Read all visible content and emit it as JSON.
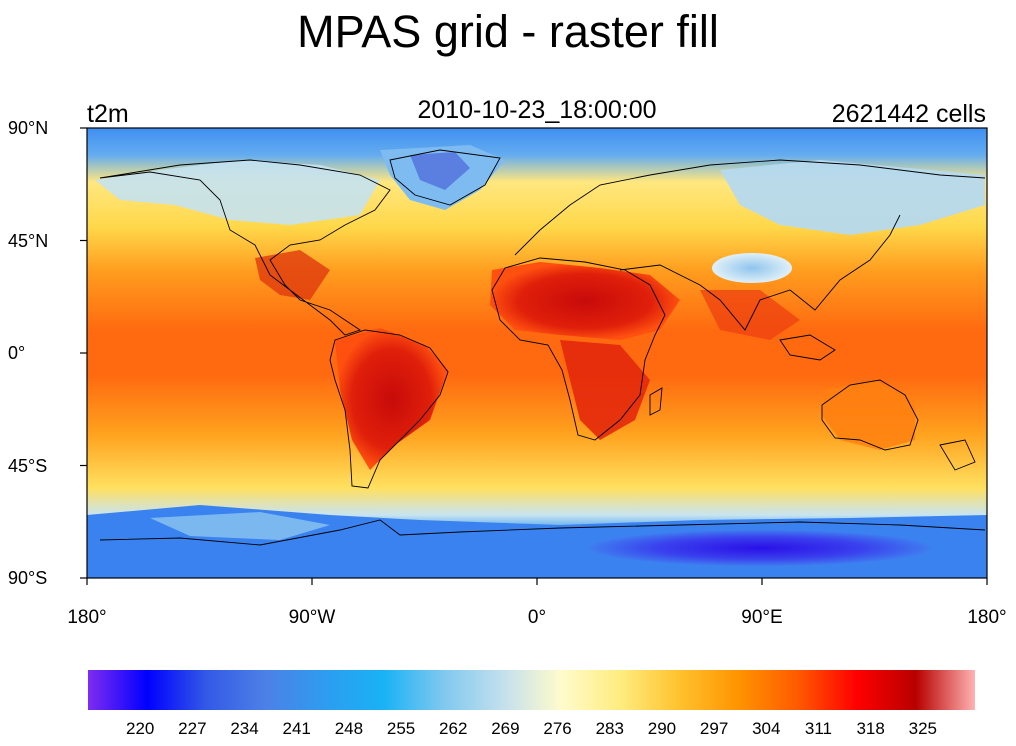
{
  "title": "MPAS grid - raster fill",
  "left_string": "t2m",
  "center_string": "2010-10-23_18:00:00",
  "right_string": "2621442 cells",
  "y_ticks": [
    {
      "label": "90°N",
      "lat": 90
    },
    {
      "label": "45°N",
      "lat": 45
    },
    {
      "label": "0°",
      "lat": 0
    },
    {
      "label": "45°S",
      "lat": -45
    },
    {
      "label": "90°S",
      "lat": -90
    }
  ],
  "x_ticks": [
    {
      "label": "180°",
      "lon": -180
    },
    {
      "label": "90°W",
      "lon": -90
    },
    {
      "label": "0°",
      "lon": 0
    },
    {
      "label": "90°E",
      "lon": 90
    },
    {
      "label": "180°",
      "lon": 180
    }
  ],
  "colorbar": {
    "labels": [
      "220",
      "227",
      "234",
      "241",
      "248",
      "255",
      "262",
      "269",
      "276",
      "283",
      "290",
      "297",
      "304",
      "311",
      "318",
      "325"
    ],
    "colors": [
      "#7f2cf0",
      "#0000ff",
      "#3359e6",
      "#4d80e6",
      "#2e9cf0",
      "#19b2f5",
      "#7fc8ef",
      "#c2dfee",
      "#fffbcc",
      "#ffec80",
      "#ffc22e",
      "#ff9400",
      "#ff5a00",
      "#ff0000",
      "#b80000",
      "#ffb3b3"
    ]
  },
  "colors": {
    "polar_cold": "#2f7cf0",
    "antarctic_core": "#2a10e8",
    "temperate": "#ffd84a",
    "subtropic": "#ff9c1e",
    "tropic": "#ff6a10",
    "land_hot": "#d41010",
    "coastline": "#000000"
  }
}
